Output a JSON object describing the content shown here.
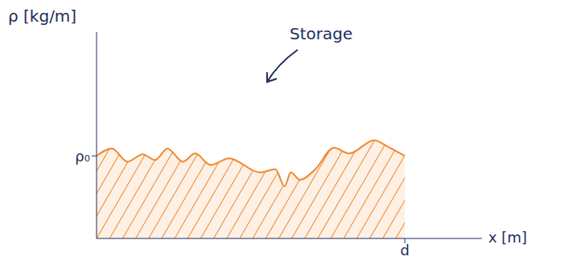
{
  "chart_data": {
    "type": "area",
    "x_label": "x [m]",
    "y_label": "ρ [kg/m]",
    "annotation": "Storage",
    "x": [
      0,
      0.05,
      0.1,
      0.15,
      0.19,
      0.23,
      0.28,
      0.32,
      0.37,
      0.43,
      0.53,
      0.58,
      0.61,
      0.63,
      0.66,
      0.71,
      0.77,
      0.82,
      0.9,
      0.95,
      1.0
    ],
    "values": [
      1.0,
      1.09,
      0.93,
      1.02,
      0.95,
      1.09,
      0.93,
      1.03,
      0.89,
      0.97,
      0.8,
      0.84,
      0.63,
      0.8,
      0.71,
      0.84,
      1.1,
      1.03,
      1.19,
      1.1,
      1.0
    ],
    "color": "#f0882c",
    "xlim": [
      0,
      1.25
    ],
    "xticks": [
      {
        "value": 1,
        "label": "d"
      }
    ],
    "ylim": [
      0,
      2.5
    ],
    "yticks": [
      {
        "value": 1,
        "label": "ρ₀"
      }
    ],
    "grid": false
  }
}
